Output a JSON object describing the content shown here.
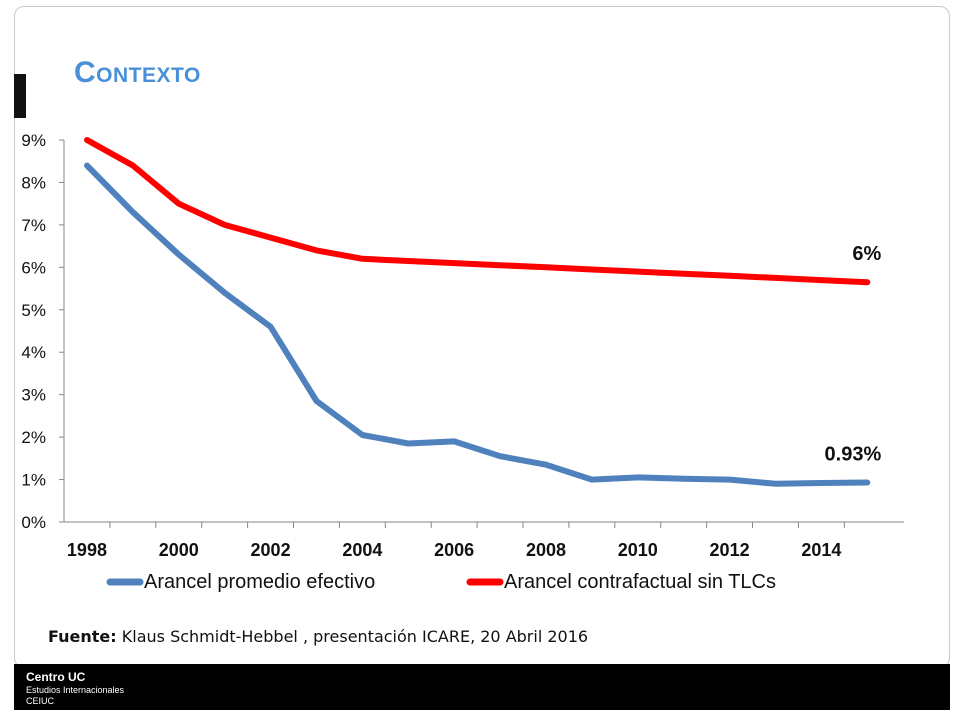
{
  "slide": {
    "title": "Contexto",
    "source_label": "Fuente:",
    "source_text": " Klaus Schmidt-Hebbel , presentación ICARE, 20 Abril 2016"
  },
  "footer": {
    "line1": "Centro UC",
    "line2": "Estudios Internacionales",
    "line3": "CEIUC"
  },
  "chart_data": {
    "type": "line",
    "title": "",
    "xlabel": "",
    "ylabel": "",
    "x": [
      1998,
      1999,
      2000,
      2001,
      2002,
      2003,
      2004,
      2005,
      2006,
      2007,
      2008,
      2009,
      2010,
      2011,
      2012,
      2013,
      2014,
      2015
    ],
    "x_ticks": [
      "1998",
      "2000",
      "2002",
      "2004",
      "2006",
      "2008",
      "2010",
      "2012",
      "2014"
    ],
    "y_ticks": [
      "0%",
      "1%",
      "2%",
      "3%",
      "4%",
      "5%",
      "6%",
      "7%",
      "8%",
      "9%"
    ],
    "ylim": [
      0,
      9
    ],
    "grid": false,
    "legend_position": "bottom",
    "series": [
      {
        "name": "Arancel promedio efectivo",
        "color": "#4f81bd",
        "values": [
          8.4,
          7.3,
          6.3,
          5.4,
          4.6,
          2.85,
          2.05,
          1.85,
          1.9,
          1.55,
          1.35,
          1.0,
          1.05,
          1.02,
          1.0,
          0.9,
          0.92,
          0.93
        ],
        "end_label": "0.93%"
      },
      {
        "name": "Arancel contrafactual sin TLCs",
        "color": "#ff0000",
        "values": [
          9.0,
          8.4,
          7.5,
          7.0,
          6.7,
          6.4,
          6.2,
          6.15,
          6.1,
          6.05,
          6.0,
          5.95,
          5.9,
          5.85,
          5.8,
          5.75,
          5.7,
          5.65
        ],
        "end_label": "6%"
      }
    ]
  }
}
